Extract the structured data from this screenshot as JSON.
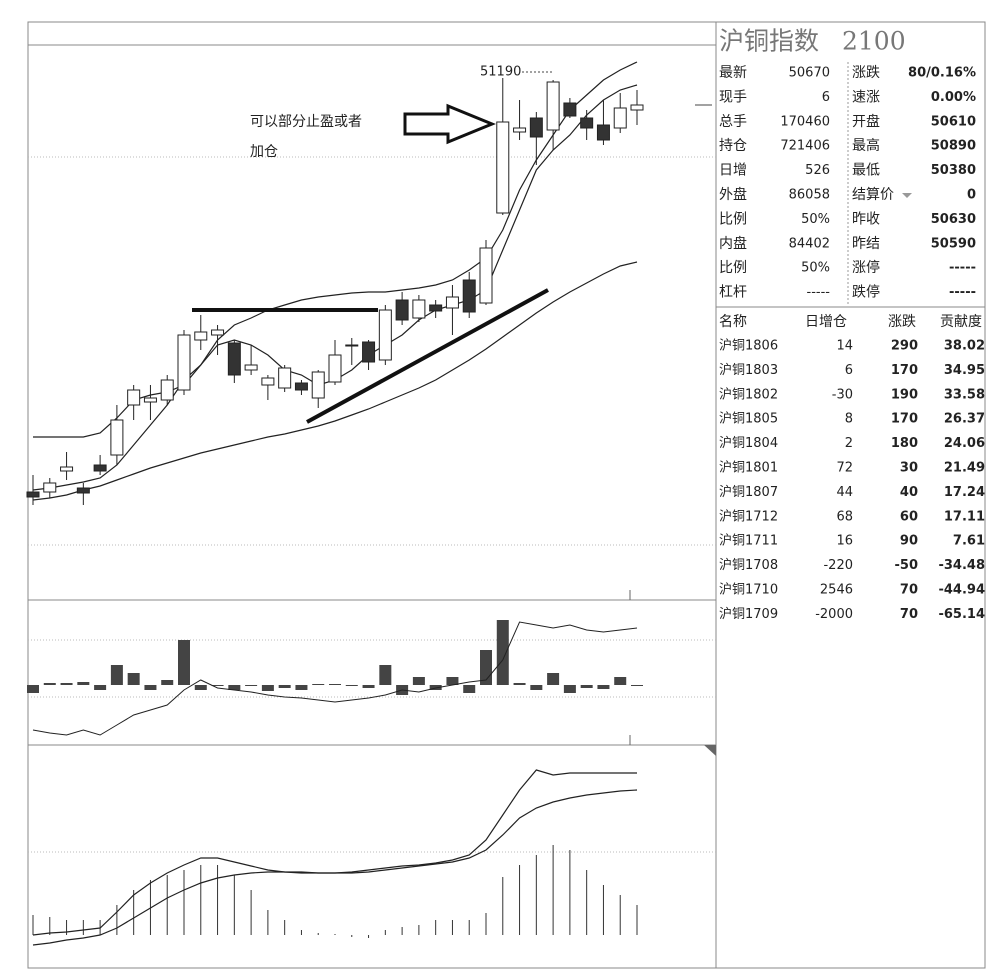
{
  "header": {
    "name": "沪铜指数",
    "code": "2100"
  },
  "annotation": {
    "line1": "可以部分止盈或者",
    "line2": "加仓",
    "peak_label": "51190"
  },
  "price_chart": {
    "type": "candlestick",
    "ylim": [
      45970,
      51520
    ],
    "candles": [
      [
        47050,
        47220,
        46920,
        47000
      ],
      [
        47050,
        47190,
        46990,
        47140
      ],
      [
        47260,
        47450,
        47170,
        47300
      ],
      [
        47090,
        47140,
        46920,
        47040
      ],
      [
        47320,
        47420,
        47220,
        47260
      ],
      [
        47420,
        47920,
        47320,
        47770
      ],
      [
        47920,
        48120,
        47770,
        48070
      ],
      [
        47950,
        48120,
        47770,
        47990
      ],
      [
        47970,
        48220,
        47920,
        48170
      ],
      [
        48070,
        48670,
        48020,
        48620
      ],
      [
        48570,
        48820,
        48470,
        48650
      ],
      [
        48620,
        48720,
        48420,
        48670
      ],
      [
        48540,
        48570,
        48140,
        48220
      ],
      [
        48270,
        48520,
        48220,
        48320
      ],
      [
        48120,
        48220,
        47970,
        48190
      ],
      [
        48090,
        48320,
        48050,
        48290
      ],
      [
        48140,
        48170,
        48020,
        48070
      ],
      [
        47990,
        48270,
        47890,
        48250
      ],
      [
        48150,
        48570,
        48120,
        48420
      ],
      [
        48520,
        48590,
        48320,
        48520
      ],
      [
        48550,
        48570,
        48270,
        48350
      ],
      [
        48370,
        48920,
        48320,
        48870
      ],
      [
        48970,
        49050,
        48720,
        48770
      ],
      [
        48790,
        49020,
        48750,
        48970
      ],
      [
        48920,
        48970,
        48790,
        48860
      ],
      [
        48890,
        49120,
        48620,
        49000
      ],
      [
        49170,
        49250,
        48790,
        48850
      ],
      [
        48940,
        49570,
        48920,
        49490
      ],
      [
        49840,
        51190,
        49820,
        50750
      ],
      [
        50650,
        50970,
        50570,
        50690
      ],
      [
        50790,
        50850,
        50320,
        50600
      ],
      [
        50670,
        51170,
        50470,
        51150
      ],
      [
        50940,
        50990,
        50790,
        50810
      ],
      [
        50790,
        50870,
        50570,
        50690
      ],
      [
        50720,
        50970,
        50520,
        50570
      ],
      [
        50690,
        51040,
        50640,
        50890
      ],
      [
        50870,
        51070,
        50720,
        50920
      ]
    ],
    "lines": [
      {
        "values": [
          47600,
          47600,
          47600,
          47600,
          47640,
          47790,
          47970,
          48020,
          48050,
          48120,
          48320,
          48570,
          48720,
          48790,
          48870,
          48920,
          48970,
          49000,
          49020,
          49040,
          49050,
          49050,
          49070,
          49090,
          49120,
          49170,
          49270,
          49390,
          49670,
          50070,
          50370,
          50620,
          50870,
          51020,
          51170,
          51270,
          51350
        ]
      },
      {
        "values": [
          47070,
          47090,
          47120,
          47150,
          47190,
          47320,
          47520,
          47720,
          47920,
          48170,
          48320,
          48520,
          48570,
          48520,
          48420,
          48270,
          48220,
          48120,
          48170,
          48270,
          48420,
          48520,
          48620,
          48770,
          48870,
          48920,
          48970,
          49070,
          49470,
          49870,
          50270,
          50470,
          50620,
          50820,
          50970,
          51070,
          51120
        ]
      },
      {
        "values": [
          46970,
          46990,
          47020,
          47070,
          47110,
          47170,
          47230,
          47290,
          47340,
          47390,
          47440,
          47480,
          47520,
          47560,
          47600,
          47630,
          47670,
          47710,
          47760,
          47820,
          47880,
          47950,
          48020,
          48090,
          48170,
          48270,
          48370,
          48480,
          48600,
          48720,
          48840,
          48950,
          49050,
          49140,
          49230,
          49310,
          49350
        ]
      }
    ]
  },
  "volume_chart": {
    "type": "bar",
    "ylim": [
      -60,
      85
    ],
    "values": [
      -8,
      2,
      2,
      3,
      -5,
      20,
      12,
      -5,
      5,
      45,
      -5,
      0,
      -5,
      0,
      -6,
      -3,
      -5,
      1,
      1,
      0,
      -3,
      20,
      -10,
      8,
      -5,
      8,
      -8,
      35,
      65,
      2,
      -5,
      12,
      -8,
      -3,
      -4,
      8,
      0
    ],
    "line": [
      -45,
      -48,
      -50,
      -45,
      -50,
      -40,
      -30,
      -25,
      -20,
      -5,
      5,
      -3,
      -5,
      -7,
      -10,
      -12,
      -13,
      -15,
      -17,
      -15,
      -13,
      -10,
      -5,
      -7,
      -3,
      0,
      3,
      5,
      25,
      63,
      60,
      57,
      60,
      55,
      53,
      55,
      57
    ]
  },
  "macd_chart": {
    "type": "bar",
    "ylim": [
      -33,
      190
    ],
    "values": [
      20,
      18,
      15,
      15,
      15,
      30,
      45,
      55,
      60,
      65,
      70,
      70,
      60,
      45,
      25,
      15,
      5,
      2,
      1,
      -2,
      -3,
      5,
      8,
      10,
      15,
      15,
      15,
      22,
      58,
      70,
      80,
      90,
      85,
      65,
      50,
      40,
      30
    ],
    "lines": [
      {
        "values": [
          0,
          2,
          3,
          5,
          7,
          23,
          40,
          52,
          62,
          70,
          77,
          77,
          73,
          69,
          65,
          63,
          62,
          62,
          62,
          63,
          65,
          67,
          69,
          70,
          72,
          75,
          80,
          95,
          120,
          145,
          165,
          160,
          162,
          162,
          162,
          162,
          162
        ]
      },
      {
        "values": [
          -10,
          -8,
          -5,
          -3,
          0,
          7,
          17,
          27,
          37,
          45,
          52,
          57,
          60,
          62,
          63,
          63,
          63,
          62,
          62,
          62,
          63,
          65,
          67,
          69,
          71,
          73,
          77,
          85,
          100,
          117,
          127,
          133,
          137,
          140,
          142,
          144,
          145
        ]
      }
    ]
  },
  "quote": {
    "rows": [
      [
        "最新",
        "50670",
        "涨跌",
        "80/0.16%"
      ],
      [
        "现手",
        "6",
        "速涨",
        "0.00%"
      ],
      [
        "总手",
        "170460",
        "开盘",
        "50610"
      ],
      [
        "持仓",
        "721406",
        "最高",
        "50890"
      ],
      [
        "日增",
        "526",
        "最低",
        "50380"
      ],
      [
        "外盘",
        "86058",
        "结算价",
        "0"
      ],
      [
        "比例",
        "50%",
        "昨收",
        "50630"
      ],
      [
        "内盘",
        "84402",
        "昨结",
        "50590"
      ],
      [
        "比例",
        "50%",
        "涨停",
        "-----"
      ],
      [
        "杠杆",
        "-----",
        "跌停",
        "-----"
      ]
    ]
  },
  "contrib": {
    "header": [
      "名称",
      "日增仓",
      "涨跌",
      "贡献度"
    ],
    "rows": [
      [
        "沪铜1806",
        "14",
        "290",
        "38.02"
      ],
      [
        "沪铜1803",
        "6",
        "170",
        "34.95"
      ],
      [
        "沪铜1802",
        "-30",
        "190",
        "33.58"
      ],
      [
        "沪铜1805",
        "8",
        "170",
        "26.37"
      ],
      [
        "沪铜1804",
        "2",
        "180",
        "24.06"
      ],
      [
        "沪铜1801",
        "72",
        "30",
        "21.49"
      ],
      [
        "沪铜1807",
        "44",
        "40",
        "17.24"
      ],
      [
        "沪铜1712",
        "68",
        "60",
        "17.11"
      ],
      [
        "沪铜1711",
        "16",
        "90",
        "7.61"
      ],
      [
        "沪铜1708",
        "-220",
        "-50",
        "-34.48"
      ],
      [
        "沪铜1710",
        "2546",
        "70",
        "-44.94"
      ],
      [
        "沪铜1709",
        "-2000",
        "70",
        "-65.14"
      ]
    ]
  }
}
